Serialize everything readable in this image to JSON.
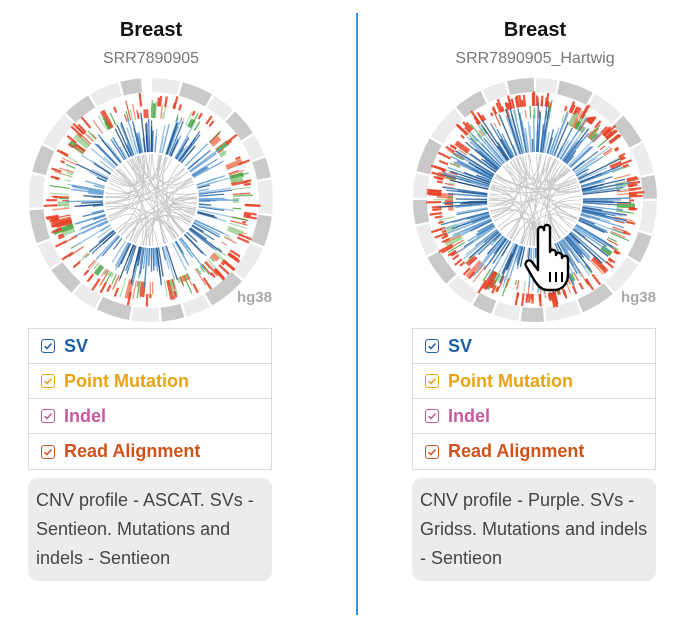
{
  "colors": {
    "sv": "#1f5fa8",
    "point_mutation": "#e8a416",
    "indel": "#c45ba3",
    "read_alignment": "#d2521c",
    "divider": "#3a8ee6"
  },
  "panels": [
    {
      "title": "Breast",
      "sample_id": "SRR7890905",
      "genome": "hg38",
      "legend": [
        {
          "label": "SV",
          "checked": true
        },
        {
          "label": "Point Mutation",
          "checked": true
        },
        {
          "label": "Indel",
          "checked": true
        },
        {
          "label": "Read Alignment",
          "checked": true
        }
      ],
      "description": "CNV profile - ASCAT. SVs - Sentieon. Mutations and indels - Sentieon"
    },
    {
      "title": "Breast",
      "sample_id": "SRR7890905_Hartwig",
      "genome": "hg38",
      "legend": [
        {
          "label": "SV",
          "checked": true
        },
        {
          "label": "Point Mutation",
          "checked": true
        },
        {
          "label": "Indel",
          "checked": true
        },
        {
          "label": "Read Alignment",
          "checked": true
        }
      ],
      "description": "CNV profile - Purple. SVs - Gridss. Mutations and indels - Sentieon"
    }
  ],
  "cursor": "hand-pointer-icon"
}
